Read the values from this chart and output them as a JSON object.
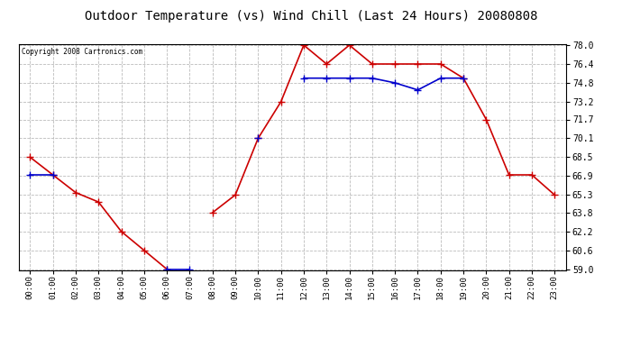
{
  "title": "Outdoor Temperature (vs) Wind Chill (Last 24 Hours) 20080808",
  "copyright": "Copyright 2008 Cartronics.com",
  "hours": [
    "00:00",
    "01:00",
    "02:00",
    "03:00",
    "04:00",
    "05:00",
    "06:00",
    "07:00",
    "08:00",
    "09:00",
    "10:00",
    "11:00",
    "12:00",
    "13:00",
    "14:00",
    "15:00",
    "16:00",
    "17:00",
    "18:00",
    "19:00",
    "20:00",
    "21:00",
    "22:00",
    "23:00"
  ],
  "temp": [
    68.5,
    67.0,
    65.5,
    64.7,
    62.2,
    60.6,
    59.0,
    null,
    63.8,
    65.3,
    70.1,
    73.2,
    78.0,
    76.4,
    78.0,
    76.4,
    76.4,
    76.4,
    76.4,
    75.2,
    71.7,
    67.0,
    67.0,
    65.3
  ],
  "windchill": [
    67.0,
    67.0,
    null,
    null,
    null,
    null,
    59.0,
    59.0,
    null,
    null,
    70.1,
    null,
    75.2,
    75.2,
    75.2,
    75.2,
    74.8,
    74.2,
    75.2,
    75.2,
    null,
    null,
    null,
    null
  ],
  "ylim": [
    59.0,
    78.0
  ],
  "yticks": [
    59.0,
    60.6,
    62.2,
    63.8,
    65.3,
    66.9,
    68.5,
    70.1,
    71.7,
    73.2,
    74.8,
    76.4,
    78.0
  ],
  "temp_color": "#cc0000",
  "windchill_color": "#0000cc",
  "grid_color": "#bbbbbb",
  "bg_color": "#ffffff",
  "title_fontsize": 10,
  "marker": "+",
  "marker_size": 6,
  "line_width": 1.2
}
